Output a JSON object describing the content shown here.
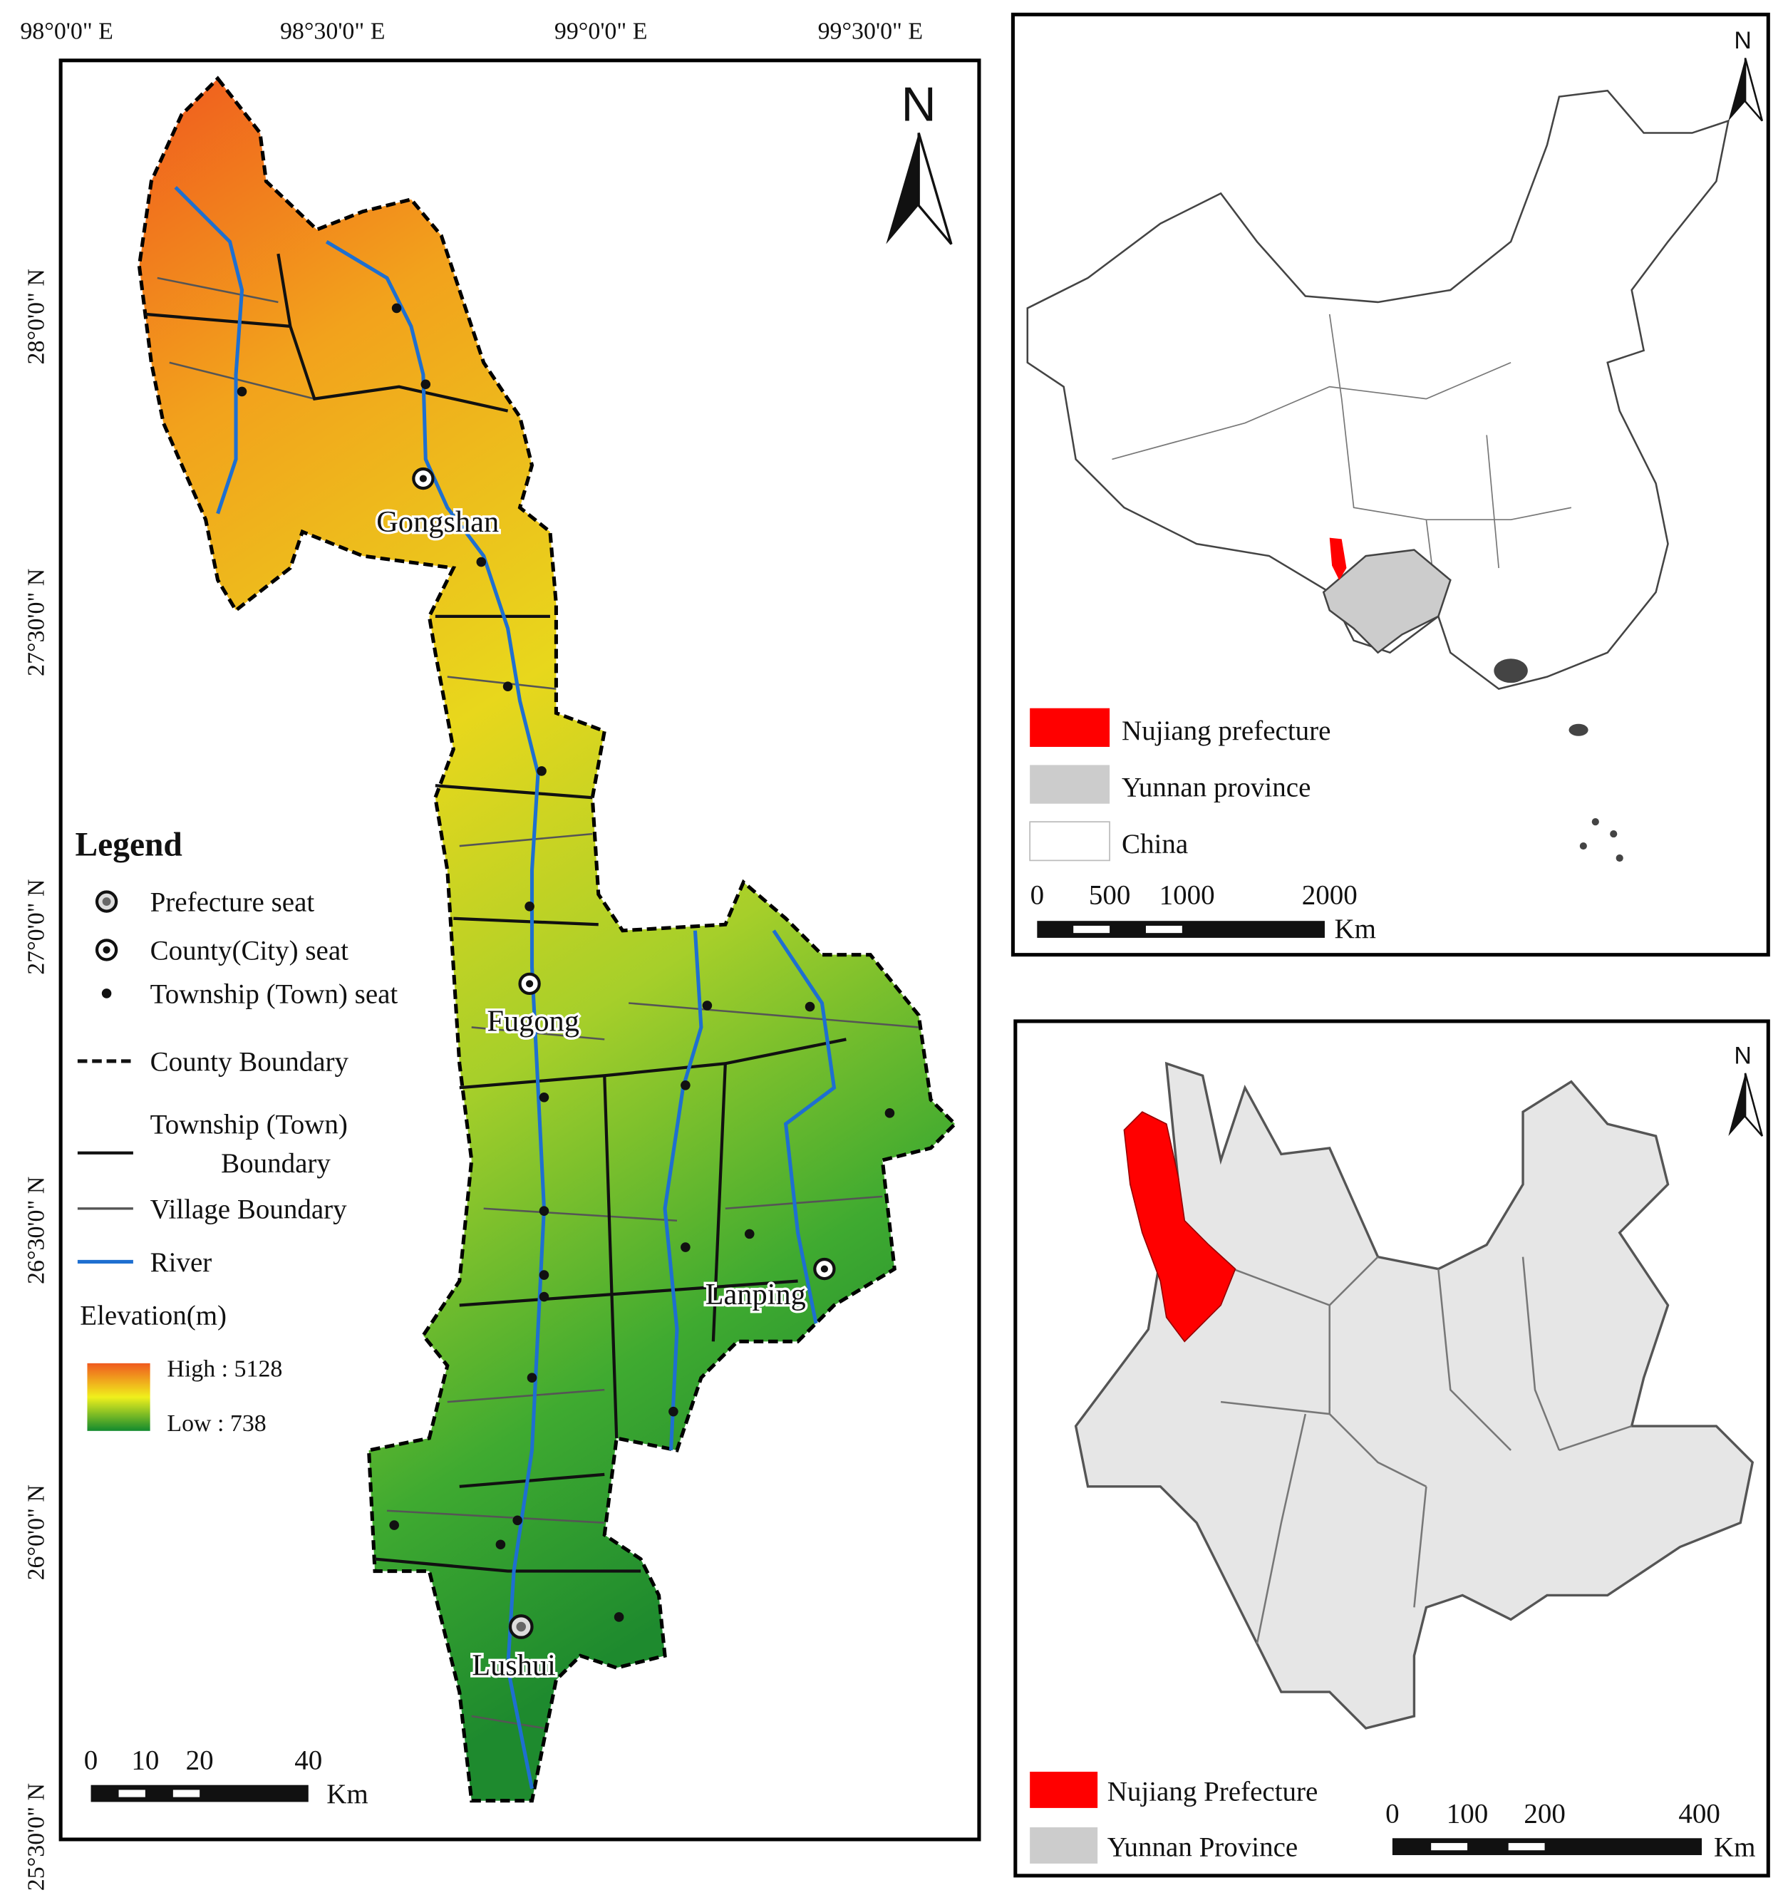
{
  "main_map": {
    "longitude_labels": [
      "98°0'0\" E",
      "98°30'0\" E",
      "99°0'0\" E",
      "99°30'0\" E"
    ],
    "latitude_labels": [
      "28°0'0\" N",
      "27°30'0\" N",
      "27°0'0\" N",
      "26°30'0\" N",
      "26°0'0\" N",
      "25°30'0\" N"
    ],
    "north": "N",
    "places": [
      "Gongshan",
      "Fugong",
      "Lanping",
      "Lushui"
    ],
    "legend": {
      "title": "Legend",
      "items": [
        {
          "label": "Prefecture seat"
        },
        {
          "label": "County(City) seat"
        },
        {
          "label": "Township (Town) seat"
        },
        {
          "label": "County Boundary"
        },
        {
          "label": [
            "Township (Town)",
            "Boundary"
          ]
        },
        {
          "label": "Village Boundary"
        },
        {
          "label": "River"
        }
      ],
      "elevation": {
        "title": "Elevation(m)",
        "high": "High : 5128",
        "low": "Low : 738"
      }
    },
    "scale_bar": {
      "ticks": [
        "0",
        "10",
        "20",
        "40"
      ],
      "unit": "Km"
    }
  },
  "china_inset": {
    "north": "N",
    "legend": [
      "Nujiang prefecture",
      "Yunnan province",
      "China"
    ],
    "scale_bar": {
      "ticks": [
        "0",
        "500",
        "1000",
        "2000"
      ],
      "unit": "Km"
    }
  },
  "yunnan_inset": {
    "north": "N",
    "legend": [
      "Nujiang Prefecture",
      "Yunnan Province"
    ],
    "scale_bar": {
      "ticks": [
        "0",
        "100",
        "200",
        "400"
      ],
      "unit": "Km"
    }
  }
}
